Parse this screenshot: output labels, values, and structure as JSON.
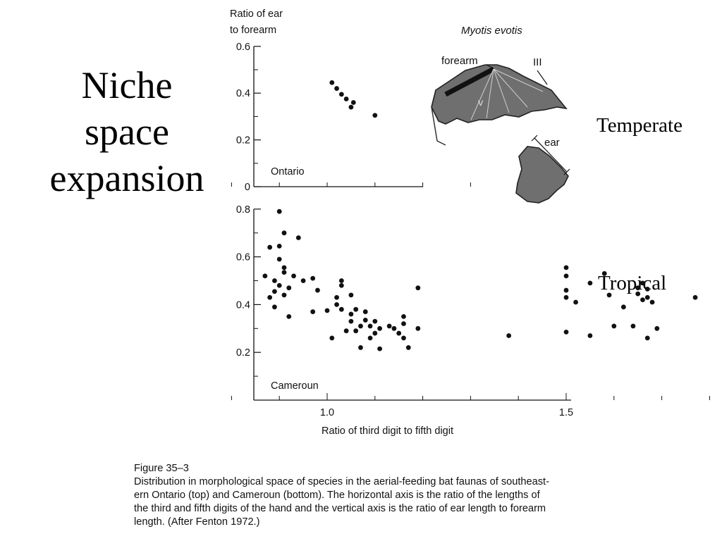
{
  "slide": {
    "title_lines": [
      "Niche",
      "space",
      "expansion"
    ],
    "labels": {
      "temperate": "Temperate",
      "tropical": "Tropical"
    }
  },
  "figure": {
    "inset_title": "Myotis evotis",
    "inset_labels": {
      "forearm": "forearm",
      "digit": "III",
      "digit5": "V",
      "ear": "ear"
    },
    "caption": {
      "title": "Figure 35–3",
      "lines": [
        "Distribution in morphological space of species in the aerial-feeding bat faunas of southeast-",
        "ern Ontario (top) and Cameroun (bottom). The horizontal axis is the ratio of the lengths of",
        "the third and fifth digits of the hand and the vertical axis is the ratio of ear length to forearm",
        "length. (After Fenton 1972.)"
      ]
    }
  },
  "chart_data": [
    {
      "type": "scatter",
      "panel": "Ontario",
      "ylabel": "Ratio of ear to forearm",
      "ylim": [
        0,
        0.6
      ],
      "yticks": [
        0,
        0.2,
        0.4,
        0.6
      ],
      "ytick_labels": [
        "0",
        "0.2",
        "0.4",
        "0.6"
      ],
      "xlim": [
        0.7,
        2.0
      ],
      "points": [
        {
          "x": 1.01,
          "y": 0.445
        },
        {
          "x": 1.02,
          "y": 0.42
        },
        {
          "x": 1.03,
          "y": 0.395
        },
        {
          "x": 1.04,
          "y": 0.375
        },
        {
          "x": 1.055,
          "y": 0.36
        },
        {
          "x": 1.05,
          "y": 0.34
        },
        {
          "x": 1.1,
          "y": 0.305
        },
        {
          "x": 1.31,
          "y": 0.33
        }
      ]
    },
    {
      "type": "scatter",
      "panel": "Cameroun",
      "xlabel": "Ratio of third digit to fifth digit",
      "xlim": [
        0.7,
        2.0
      ],
      "xticks": [
        1.0,
        1.5,
        2.0
      ],
      "xtick_labels": [
        "1.0",
        "1.5",
        "2.0"
      ],
      "ylim": [
        0,
        0.8
      ],
      "yticks": [
        0.2,
        0.4,
        0.6,
        0.8
      ],
      "ytick_labels": [
        "0.2",
        "0.4",
        "0.6",
        "0.8"
      ],
      "points": [
        {
          "x": 0.9,
          "y": 0.79
        },
        {
          "x": 0.91,
          "y": 0.7
        },
        {
          "x": 0.94,
          "y": 0.68
        },
        {
          "x": 0.88,
          "y": 0.64
        },
        {
          "x": 0.9,
          "y": 0.645
        },
        {
          "x": 0.9,
          "y": 0.59
        },
        {
          "x": 0.91,
          "y": 0.555
        },
        {
          "x": 0.91,
          "y": 0.535
        },
        {
          "x": 0.87,
          "y": 0.52
        },
        {
          "x": 0.89,
          "y": 0.5
        },
        {
          "x": 0.93,
          "y": 0.52
        },
        {
          "x": 0.95,
          "y": 0.5
        },
        {
          "x": 0.97,
          "y": 0.51
        },
        {
          "x": 0.9,
          "y": 0.48
        },
        {
          "x": 0.92,
          "y": 0.47
        },
        {
          "x": 0.89,
          "y": 0.455
        },
        {
          "x": 0.91,
          "y": 0.44
        },
        {
          "x": 0.88,
          "y": 0.43
        },
        {
          "x": 0.89,
          "y": 0.39
        },
        {
          "x": 0.92,
          "y": 0.35
        },
        {
          "x": 0.97,
          "y": 0.37
        },
        {
          "x": 0.98,
          "y": 0.46
        },
        {
          "x": 1.03,
          "y": 0.5
        },
        {
          "x": 1.03,
          "y": 0.48
        },
        {
          "x": 1.02,
          "y": 0.43
        },
        {
          "x": 1.02,
          "y": 0.4
        },
        {
          "x": 1.0,
          "y": 0.375
        },
        {
          "x": 1.05,
          "y": 0.44
        },
        {
          "x": 1.03,
          "y": 0.38
        },
        {
          "x": 1.05,
          "y": 0.36
        },
        {
          "x": 1.06,
          "y": 0.38
        },
        {
          "x": 1.08,
          "y": 0.37
        },
        {
          "x": 1.08,
          "y": 0.335
        },
        {
          "x": 1.05,
          "y": 0.33
        },
        {
          "x": 1.1,
          "y": 0.33
        },
        {
          "x": 1.07,
          "y": 0.31
        },
        {
          "x": 1.09,
          "y": 0.31
        },
        {
          "x": 1.11,
          "y": 0.3
        },
        {
          "x": 1.06,
          "y": 0.29
        },
        {
          "x": 1.13,
          "y": 0.31
        },
        {
          "x": 1.16,
          "y": 0.35
        },
        {
          "x": 1.14,
          "y": 0.3
        },
        {
          "x": 1.16,
          "y": 0.32
        },
        {
          "x": 1.19,
          "y": 0.3
        },
        {
          "x": 1.15,
          "y": 0.28
        },
        {
          "x": 1.1,
          "y": 0.28
        },
        {
          "x": 1.04,
          "y": 0.29
        },
        {
          "x": 1.09,
          "y": 0.26
        },
        {
          "x": 1.01,
          "y": 0.26
        },
        {
          "x": 1.07,
          "y": 0.22
        },
        {
          "x": 1.11,
          "y": 0.215
        },
        {
          "x": 1.17,
          "y": 0.22
        },
        {
          "x": 1.16,
          "y": 0.26
        },
        {
          "x": 1.19,
          "y": 0.47
        },
        {
          "x": 1.38,
          "y": 0.27
        },
        {
          "x": 1.5,
          "y": 0.555
        },
        {
          "x": 1.5,
          "y": 0.52
        },
        {
          "x": 1.5,
          "y": 0.46
        },
        {
          "x": 1.5,
          "y": 0.43
        },
        {
          "x": 1.52,
          "y": 0.41
        },
        {
          "x": 1.55,
          "y": 0.49
        },
        {
          "x": 1.58,
          "y": 0.53
        },
        {
          "x": 1.5,
          "y": 0.285
        },
        {
          "x": 1.55,
          "y": 0.27
        },
        {
          "x": 1.59,
          "y": 0.44
        },
        {
          "x": 1.62,
          "y": 0.39
        },
        {
          "x": 1.6,
          "y": 0.31
        },
        {
          "x": 1.64,
          "y": 0.31
        },
        {
          "x": 1.65,
          "y": 0.47
        },
        {
          "x": 1.66,
          "y": 0.49
        },
        {
          "x": 1.67,
          "y": 0.465
        },
        {
          "x": 1.65,
          "y": 0.445
        },
        {
          "x": 1.67,
          "y": 0.43
        },
        {
          "x": 1.66,
          "y": 0.42
        },
        {
          "x": 1.68,
          "y": 0.41
        },
        {
          "x": 1.67,
          "y": 0.26
        },
        {
          "x": 1.69,
          "y": 0.3
        },
        {
          "x": 1.77,
          "y": 0.43
        }
      ]
    }
  ]
}
